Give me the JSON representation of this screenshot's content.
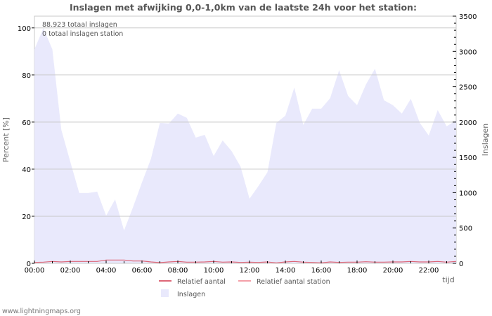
{
  "chart_data": {
    "type": "area",
    "title": "Inslagen met afwijking 0,0-1,0km van de laatste 24h voor het station:",
    "xlabel": "tijd",
    "ylabel_left": "Percent   [%]",
    "ylabel_right": "Inslagen",
    "x_ticks": [
      "00:00",
      "02:00",
      "04:00",
      "06:00",
      "08:00",
      "10:00",
      "12:00",
      "14:00",
      "16:00",
      "18:00",
      "20:00",
      "22:00"
    ],
    "y_left_ticks": [
      0,
      20,
      40,
      60,
      80,
      100
    ],
    "y_left_range": [
      0,
      105
    ],
    "y_right_ticks": [
      0,
      500,
      1000,
      1500,
      2000,
      2500,
      3000,
      3500
    ],
    "y_right_range": [
      0,
      3500
    ],
    "grid": true,
    "legend_position": "bottom",
    "annotations": [
      "88.923 totaal inslagen",
      "0 totaal inslagen station"
    ],
    "x_hours": [
      0,
      0.5,
      1,
      1.5,
      2,
      2.5,
      3,
      3.5,
      4,
      4.5,
      5,
      5.5,
      6,
      6.5,
      7,
      7.5,
      8,
      8.5,
      9,
      9.5,
      10,
      10.5,
      11,
      11.5,
      12,
      12.5,
      13,
      13.5,
      14,
      14.5,
      15,
      15.5,
      16,
      16.5,
      17,
      17.5,
      18,
      18.5,
      19,
      19.5,
      20,
      20.5,
      21,
      21.5,
      22,
      22.5,
      23,
      23.5
    ],
    "series": [
      {
        "name": "Inslagen",
        "axis": "right",
        "color": "#e9e9fc",
        "values": [
          3030,
          3330,
          3030,
          1890,
          1440,
          995,
          995,
          1015,
          675,
          905,
          465,
          795,
          1145,
          1480,
          1990,
          1980,
          2120,
          2060,
          1780,
          1820,
          1520,
          1740,
          1590,
          1370,
          915,
          1095,
          1290,
          1990,
          2090,
          2490,
          1960,
          2190,
          2190,
          2340,
          2735,
          2370,
          2240,
          2535,
          2755,
          2310,
          2240,
          2120,
          2330,
          1990,
          1810,
          2170,
          1940,
          2020
        ]
      },
      {
        "name": "Relatief aantal",
        "axis": "left",
        "color": "#dd6677",
        "values": [
          0.4,
          0.5,
          0.8,
          0.6,
          0.8,
          0.8,
          0.8,
          0.8,
          1.4,
          1.4,
          1.4,
          1.0,
          1.0,
          0.6,
          0.3,
          0.6,
          0.8,
          0.5,
          0.5,
          0.6,
          0.8,
          0.5,
          0.6,
          0.4,
          0.5,
          0.4,
          0.6,
          0.2,
          0.6,
          0.8,
          0.5,
          0.4,
          0.2,
          0.6,
          0.4,
          0.5,
          0.5,
          0.7,
          0.5,
          0.5,
          0.6,
          0.6,
          0.8,
          0.6,
          0.6,
          0.8,
          0.5,
          0.8
        ]
      },
      {
        "name": "Relatief aantal station",
        "axis": "left",
        "color": "#f4a0a8",
        "values": []
      }
    ]
  },
  "legend": [
    {
      "label": "Relatief aantal",
      "type": "line",
      "color": "#dd6677"
    },
    {
      "label": "Relatief aantal station",
      "type": "line",
      "color": "#f4a0a8"
    },
    {
      "label": "Inslagen",
      "type": "area",
      "color": "#e9e9fc"
    }
  ],
  "footer": "www.lightningmaps.org",
  "colors": {
    "grid": "#c8c8c8",
    "frame": "#c8c8c8",
    "area": "#e9e9fc",
    "line": "#dd6677",
    "text": "#555555"
  }
}
